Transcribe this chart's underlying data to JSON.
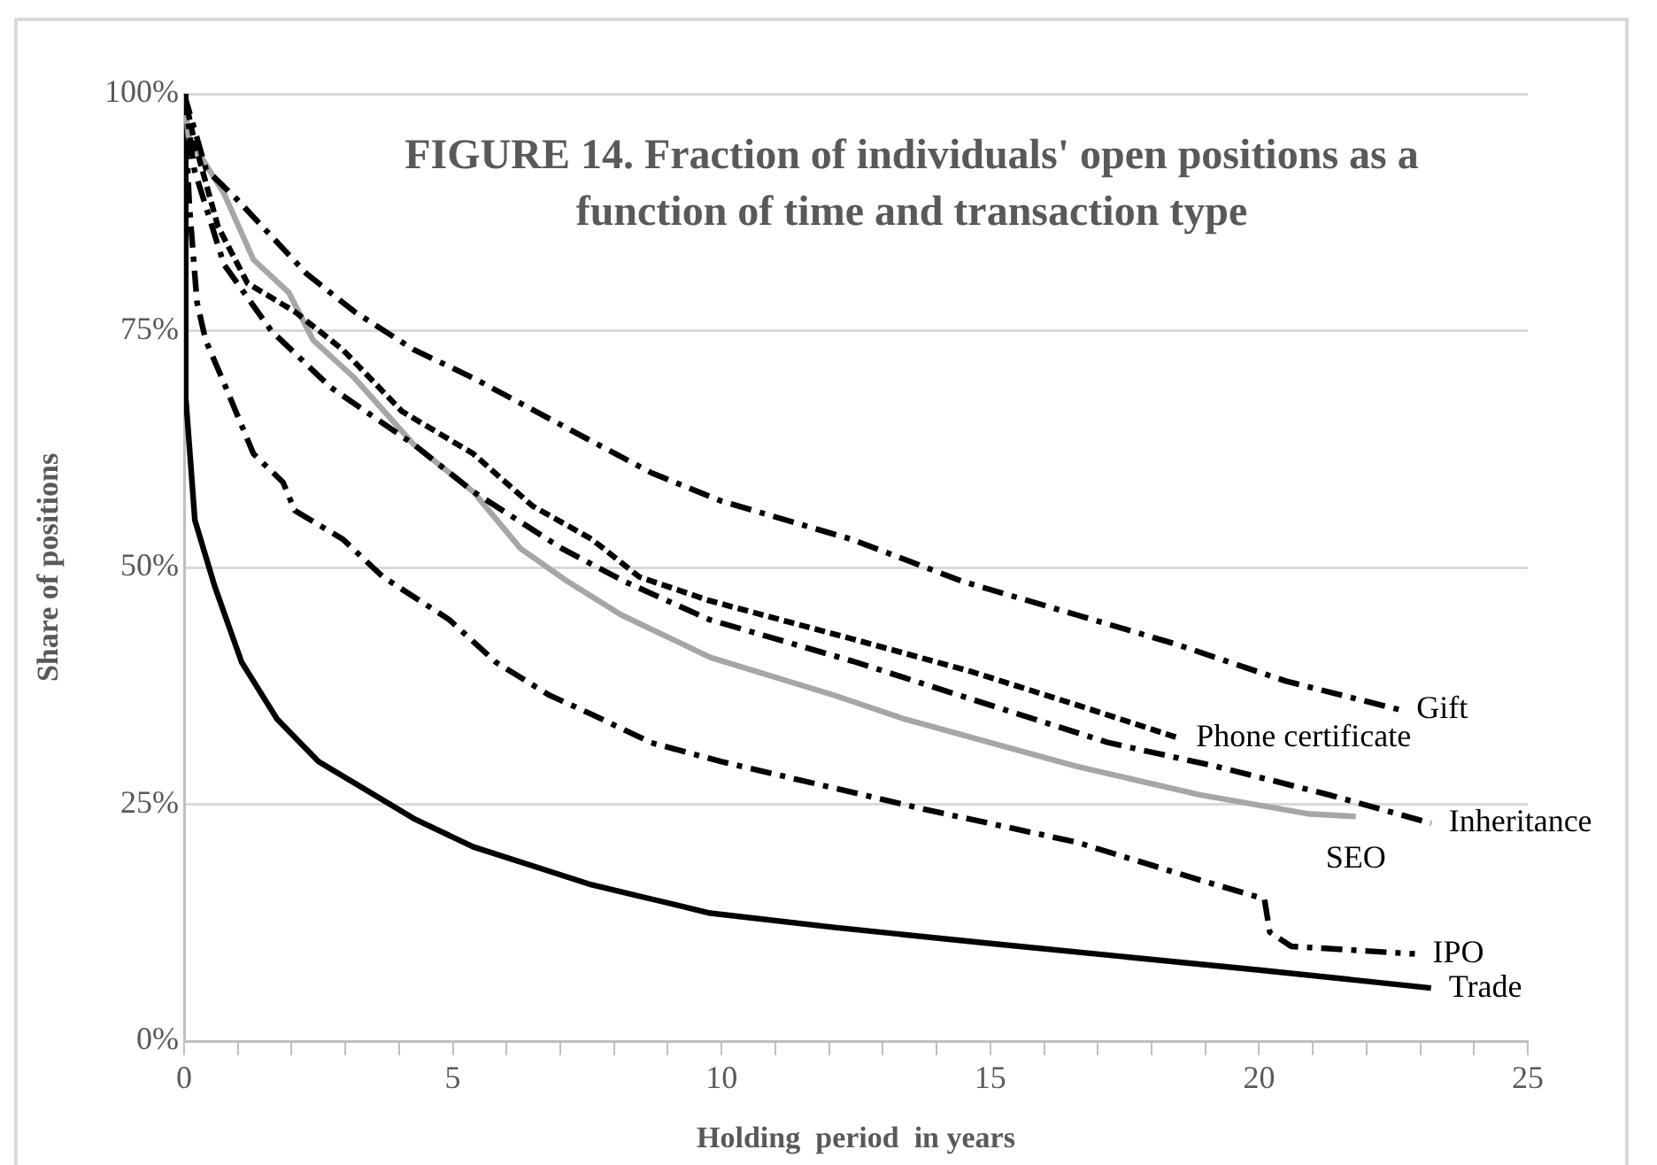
{
  "chart_data": {
    "type": "line",
    "title": "FIGURE 14. Fraction of individuals' open positions as a function of time and transaction type",
    "xlabel": "Holding  period  in years",
    "ylabel": "Share of positions",
    "xlim": [
      0,
      25
    ],
    "xticks": [
      0,
      {
        "value": 1,
        "label": null
      },
      {
        "value": 2,
        "label": null
      },
      {
        "value": 3,
        "label": null
      },
      {
        "value": 4,
        "label": null
      },
      5,
      {
        "value": 6,
        "label": null
      },
      {
        "value": 7,
        "label": null
      },
      {
        "value": 8,
        "label": null
      },
      {
        "value": 9,
        "label": null
      },
      10,
      {
        "value": 11,
        "label": null
      },
      {
        "value": 12,
        "label": null
      },
      {
        "value": 13,
        "label": null
      },
      {
        "value": 14,
        "label": null
      },
      15,
      {
        "value": 16,
        "label": null
      },
      {
        "value": 17,
        "label": null
      },
      {
        "value": 18,
        "label": null
      },
      {
        "value": 19,
        "label": null
      },
      20,
      {
        "value": 21,
        "label": null
      },
      {
        "value": 22,
        "label": null
      },
      {
        "value": 23,
        "label": null
      },
      {
        "value": 24,
        "label": null
      },
      25
    ],
    "ylim": [
      0,
      100
    ],
    "yticks": [
      {
        "value": 0,
        "label": "0%"
      },
      {
        "value": 25,
        "label": "25%"
      },
      {
        "value": 50,
        "label": "50%"
      },
      {
        "value": 75,
        "label": "75%"
      },
      {
        "value": 100,
        "label": "100%"
      }
    ],
    "grid": "y",
    "legend": false,
    "marker": "none",
    "series": [
      {
        "name": "Gift",
        "color": "#000000",
        "line_style": "dashed",
        "x": [
          0,
          0.41,
          0.96,
          2.28,
          3.17,
          4.27,
          5.38,
          7.03,
          8.69,
          10,
          12.4,
          14.5,
          16.6,
          18.4,
          20.5,
          22.6
        ],
        "values": [
          100,
          92,
          89,
          81,
          77,
          73,
          70,
          65,
          60,
          57,
          53,
          48.5,
          45,
          42,
          38,
          35
        ]
      },
      {
        "name": "Phone certificate",
        "color": "#000000",
        "line_style": "dotted",
        "x": [
          0,
          0.19,
          0.63,
          1.18,
          2.06,
          2.95,
          4.05,
          5.38,
          6.48,
          7.58,
          8.47,
          9.77,
          12.4,
          14.65,
          16.6,
          18.5
        ],
        "values": [
          100,
          95,
          86,
          80,
          77,
          73,
          66.5,
          62,
          56.5,
          53,
          49,
          46.5,
          42.5,
          39,
          35.5,
          32
        ]
      },
      {
        "name": "Inheritance",
        "color": "#000000",
        "line_style": "dashed",
        "x": [
          0,
          0.19,
          0.74,
          1.62,
          2.73,
          4.27,
          5.38,
          7.03,
          8.2,
          9.77,
          12.5,
          14.7,
          17.2,
          19.2,
          21.3,
          23.2
        ],
        "values": [
          100,
          92,
          82,
          75,
          69,
          63,
          58,
          52,
          48.5,
          44.5,
          40,
          36,
          31.5,
          29,
          26,
          23
        ]
      },
      {
        "name": "SEO",
        "color": "#a6a6a6",
        "line_style": "solid",
        "x": [
          0,
          0.08,
          0.74,
          1.29,
          1.95,
          2.4,
          3.17,
          4.27,
          5.38,
          6.26,
          7.14,
          8.13,
          9.79,
          12.1,
          13.4,
          16.6,
          18.9,
          20.9,
          21.8
        ],
        "values": [
          100,
          95.5,
          89.5,
          82.5,
          79,
          74,
          70,
          63,
          58,
          52,
          48.5,
          45,
          40.5,
          36.5,
          34,
          29,
          26,
          24,
          23.7
        ]
      },
      {
        "name": "IPO",
        "color": "#000000",
        "line_style": "dashed",
        "x": [
          0,
          0.1,
          0.24,
          0.4,
          0.74,
          1.29,
          1.84,
          2.06,
          2.95,
          3.7,
          4.93,
          5.8,
          6.8,
          7.58,
          8.69,
          10,
          13.75,
          16.6,
          18.9,
          20.1,
          20.2,
          20.6,
          22.9
        ],
        "values": [
          100,
          88,
          78,
          74,
          69.5,
          62,
          59,
          56,
          53,
          49,
          44.5,
          40,
          36.5,
          34.5,
          31.5,
          29.5,
          24.5,
          21,
          17,
          15,
          11.5,
          10,
          9.2
        ]
      },
      {
        "name": "Trade",
        "color": "#000000",
        "line_style": "solid",
        "x": [
          0,
          0.03,
          0.2,
          0.57,
          1.07,
          1.73,
          2.5,
          3.39,
          4.27,
          5.38,
          6.48,
          7.58,
          8.69,
          9.79,
          12.1,
          15,
          20,
          23.2
        ],
        "values": [
          100,
          68,
          55,
          48,
          40,
          34,
          29.5,
          26.5,
          23.5,
          20.5,
          18.5,
          16.5,
          15,
          13.5,
          12,
          10.3,
          7.5,
          5.6
        ]
      }
    ]
  }
}
